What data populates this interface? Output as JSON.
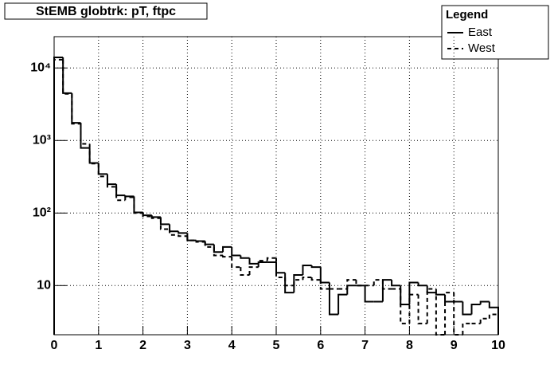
{
  "chart_data": {
    "type": "histogram",
    "title": "StEMB globtrk: pT, ftpc",
    "legend_title": "Legend",
    "legend_position": "top-right",
    "log_y": true,
    "grid": true,
    "bins": [
      0,
      0.2,
      0.4,
      0.6,
      0.8,
      1,
      1.2,
      1.4,
      1.6,
      1.8,
      2,
      2.2,
      2.4,
      2.6,
      2.8,
      3,
      3.2,
      3.4,
      3.6,
      3.8,
      4,
      4.2,
      4.4,
      4.6,
      4.8,
      5,
      5.2,
      5.4,
      5.6,
      5.8,
      6,
      6.2,
      6.4,
      6.6,
      6.8,
      7,
      7.2,
      7.4,
      7.6,
      7.8,
      8,
      8.2,
      8.4,
      8.6,
      8.8,
      9,
      9.2,
      9.4,
      9.6,
      9.8,
      10
    ],
    "series": [
      {
        "name": "East",
        "color": "#000000",
        "dashed": false,
        "values": [
          14000,
          4500,
          1750,
          790,
          490,
          345,
          250,
          175,
          170,
          102,
          93,
          88,
          70,
          56,
          53,
          42,
          41,
          37,
          29,
          34,
          26,
          24,
          20,
          21,
          21,
          15,
          8,
          14,
          19,
          18,
          11,
          4,
          7.5,
          10,
          10,
          6,
          6,
          12,
          10,
          5.5,
          11,
          10,
          8,
          7.5,
          6,
          6,
          4,
          5.5,
          6,
          5
        ]
      },
      {
        "name": "West",
        "color": "#000000",
        "dashed": true,
        "values": [
          13000,
          4400,
          1700,
          900,
          480,
          320,
          230,
          150,
          165,
          100,
          90,
          85,
          60,
          50,
          48,
          42,
          40,
          34,
          26,
          25,
          18,
          14,
          18,
          22,
          24,
          13,
          10,
          12,
          13,
          12,
          9,
          9,
          9,
          12,
          10,
          10,
          12,
          9,
          9,
          3,
          7.5,
          3,
          9,
          0,
          8,
          0,
          3,
          3,
          3.5,
          4
        ]
      }
    ],
    "xlim": [
      0,
      10
    ],
    "xticks": [
      0,
      1,
      2,
      3,
      4,
      5,
      6,
      7,
      8,
      9,
      10
    ],
    "ylim": [
      2.1,
      27000
    ],
    "yticks": [
      10,
      {
        "value": 100,
        "label": "10²"
      },
      {
        "value": 1000,
        "label": "10³"
      },
      {
        "value": 10000,
        "label": "10⁴"
      }
    ]
  }
}
